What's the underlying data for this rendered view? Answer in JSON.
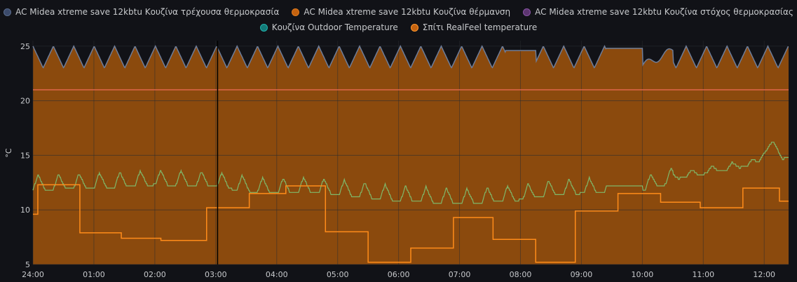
{
  "legend": {
    "row1": [
      {
        "label": "AC Midea xtreme save 12kbtu Κουζίνα τρέχουσα θερμοκρασία",
        "color": "#3b4a6b",
        "border": "#5a6b8c"
      },
      {
        "label": "AC Midea xtreme save 12kbtu Κουζίνα θέρμανση",
        "color": "#c4620f",
        "border": "#e07b1f"
      },
      {
        "label": "AC Midea xtreme save 12kbtu Κουζίνα στόχος θερμοκρασίας",
        "color": "#5c3570",
        "border": "#8a55a6"
      }
    ],
    "row2": [
      {
        "label": "Κουζίνα Outdoor Temperature",
        "color": "#137a78",
        "border": "#22b2ad"
      },
      {
        "label": "Σπίτι RealFeel temperature",
        "color": "#c4620f",
        "border": "#ff9830"
      }
    ]
  },
  "colors": {
    "heating_fill": "#8b4a0d",
    "grid": "#2a2b30",
    "current_temp": "#6e7d99",
    "target": "#e0664a",
    "outdoor": "#7fb86a",
    "realfeel": "#ff8c1a",
    "cursor": "#000000"
  },
  "chart_data": {
    "type": "line",
    "xlabel": "",
    "ylabel": "°C",
    "ylim": [
      5,
      25.5
    ],
    "y_ticks": [
      5,
      10,
      15,
      20,
      25
    ],
    "x_range_hours": [
      0,
      12.4
    ],
    "x_ticks": [
      {
        "h": 0,
        "label": "24:00"
      },
      {
        "h": 1,
        "label": "01:00"
      },
      {
        "h": 2,
        "label": "02:00"
      },
      {
        "h": 3,
        "label": "03:00"
      },
      {
        "h": 4,
        "label": "04:00"
      },
      {
        "h": 5,
        "label": "05:00"
      },
      {
        "h": 6,
        "label": "06:00"
      },
      {
        "h": 7,
        "label": "07:00"
      },
      {
        "h": 8,
        "label": "08:00"
      },
      {
        "h": 9,
        "label": "09:00"
      },
      {
        "h": 10,
        "label": "10:00"
      },
      {
        "h": 11,
        "label": "11:00"
      },
      {
        "h": 12,
        "label": "12:00"
      }
    ],
    "cursor_hour": 3.03,
    "series": [
      {
        "name": "AC Midea xtreme save 12kbtu Κουζίνα στόχος θερμοκρασίας",
        "kind": "flat",
        "value": 21
      },
      {
        "name": "AC Midea xtreme save 12kbtu Κουζίνα τρέχουσα θερμοκρασία",
        "kind": "sawtooth",
        "low": 23.0,
        "high": 25.0,
        "period_hours": 0.335,
        "flat_segments": [
          {
            "from": 7.75,
            "to": 8.25,
            "value": 24.6
          },
          {
            "from": 9.4,
            "to": 10.0,
            "value": 24.8
          }
        ],
        "ramp_segment": {
          "from": 10.0,
          "to": 10.5,
          "start": 23.2,
          "end": 24.6
        }
      },
      {
        "name": "Κουζίνα Outdoor Temperature",
        "kind": "oscillating",
        "points": [
          [
            0,
            12.3
          ],
          [
            0.5,
            12.4
          ],
          [
            1,
            12.5
          ],
          [
            1.5,
            12.6
          ],
          [
            2,
            12.8
          ],
          [
            2.5,
            12.7
          ],
          [
            3,
            12.6
          ],
          [
            3.5,
            12.2
          ],
          [
            4,
            12.0
          ],
          [
            4.5,
            12.1
          ],
          [
            5,
            11.9
          ],
          [
            5.5,
            11.6
          ],
          [
            6,
            11.3
          ],
          [
            6.5,
            11.2
          ],
          [
            7,
            11.0
          ],
          [
            7.5,
            11.2
          ],
          [
            8,
            11.4
          ],
          [
            8.5,
            11.8
          ],
          [
            9,
            12.0
          ],
          [
            9.4,
            12.1
          ],
          [
            10,
            12.2
          ],
          [
            10.5,
            13.0
          ],
          [
            11,
            13.5
          ],
          [
            11.5,
            14.0
          ],
          [
            12,
            14.5
          ],
          [
            12.4,
            15.0
          ]
        ],
        "amplitude": 1.4,
        "period_hours": 0.335,
        "flat_segments": [
          {
            "from": 9.4,
            "to": 10.0,
            "value": 12.1
          }
        ]
      },
      {
        "name": "Σπίτι RealFeel temperature",
        "kind": "step",
        "steps": [
          [
            0,
            9.6
          ],
          [
            0.08,
            12.3
          ],
          [
            0.77,
            7.9
          ],
          [
            1.45,
            7.4
          ],
          [
            2.1,
            7.2
          ],
          [
            2.85,
            10.2
          ],
          [
            3.55,
            11.5
          ],
          [
            4.15,
            12.2
          ],
          [
            4.8,
            8.0
          ],
          [
            5.5,
            5.2
          ],
          [
            6.2,
            6.5
          ],
          [
            6.9,
            9.3
          ],
          [
            7.55,
            7.3
          ],
          [
            8.25,
            5.2
          ],
          [
            8.9,
            9.9
          ],
          [
            9.6,
            11.5
          ],
          [
            10.3,
            10.7
          ],
          [
            10.95,
            10.2
          ],
          [
            11.65,
            12.0
          ],
          [
            12.25,
            10.8
          ],
          [
            12.4,
            10.8
          ]
        ]
      }
    ]
  }
}
